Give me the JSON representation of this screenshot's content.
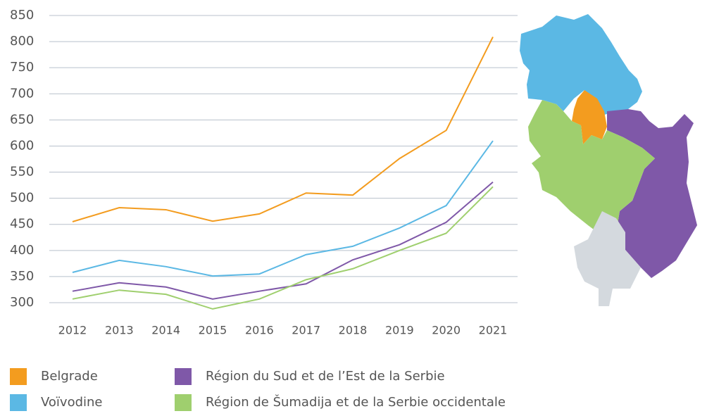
{
  "chart_data": {
    "type": "line",
    "categories": [
      "2012",
      "2013",
      "2014",
      "2015",
      "2016",
      "2017",
      "2018",
      "2019",
      "2020",
      "2021"
    ],
    "series": [
      {
        "name": "Belgrade",
        "color": "#f39c1f",
        "values": [
          455,
          482,
          478,
          456,
          470,
          510,
          506,
          576,
          630,
          809
        ]
      },
      {
        "name": "Voïvodine",
        "color": "#5bb8e4",
        "values": [
          358,
          381,
          369,
          351,
          355,
          392,
          408,
          443,
          486,
          610
        ]
      },
      {
        "name": "Région du Sud et de l’Est de la Serbie",
        "color": "#7f58a8",
        "values": [
          322,
          338,
          330,
          307,
          322,
          336,
          382,
          411,
          454,
          531
        ]
      },
      {
        "name": "Région de Šumadija et de la Serbie occidentale",
        "color": "#9fcf6e",
        "values": [
          307,
          324,
          316,
          288,
          307,
          344,
          365,
          400,
          433,
          522
        ]
      }
    ],
    "ylim": [
      300,
      850
    ],
    "yticks": [
      300,
      350,
      400,
      450,
      500,
      550,
      600,
      650,
      700,
      750,
      800,
      850
    ],
    "grid": true
  }
}
